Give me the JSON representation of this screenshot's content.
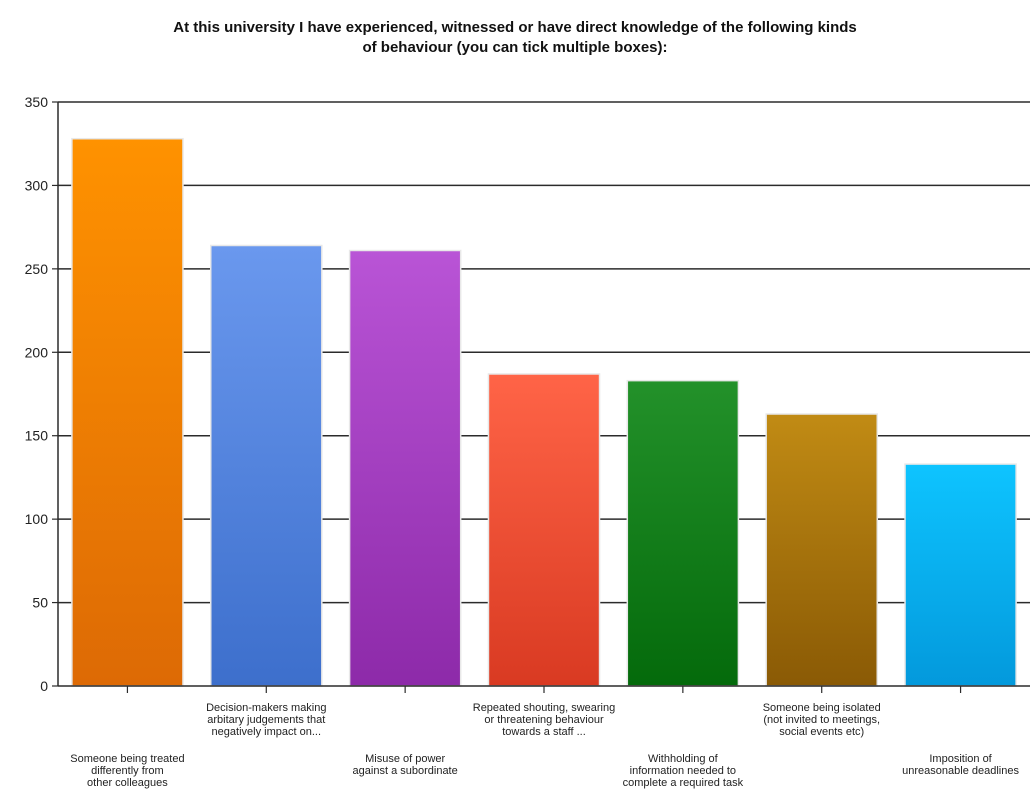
{
  "chart_data": {
    "type": "bar",
    "title_lines": [
      "At this university I have experienced, witnessed or have direct knowledge of the following kinds",
      "of behaviour (you can tick multiple boxes):"
    ],
    "categories": [
      [
        "Someone being treated",
        "differently from",
        "other colleagues"
      ],
      [
        "Decision-makers making",
        "arbitary judgements that",
        "negatively impact on..."
      ],
      [
        "Misuse of power",
        "against a subordinate"
      ],
      [
        "Repeated shouting, swearing",
        "or threatening behaviour",
        "towards a staff ..."
      ],
      [
        "Withholding of",
        "information needed to",
        "complete a required task"
      ],
      [
        "Someone being isolated",
        "(not invited to meetings,",
        "social events etc)"
      ],
      [
        "Imposition of",
        "unreasonable deadlines"
      ]
    ],
    "values": [
      328,
      264,
      261,
      187,
      183,
      163,
      133
    ],
    "colors": [
      [
        "#ff9200",
        "#dd6a05"
      ],
      [
        "#6a98ee",
        "#3d6fcc"
      ],
      [
        "#b954d6",
        "#8d2aa9"
      ],
      [
        "#ff6447",
        "#d93a22"
      ],
      [
        "#23912a",
        "#046a0b"
      ],
      [
        "#c18b14",
        "#8a5a05"
      ],
      [
        "#0ec4ff",
        "#0399dc"
      ]
    ],
    "ylim": [
      0,
      350
    ],
    "yticks": [
      0,
      50,
      100,
      150,
      200,
      250,
      300,
      350
    ],
    "grid": true,
    "xlabel": "",
    "ylabel": ""
  }
}
